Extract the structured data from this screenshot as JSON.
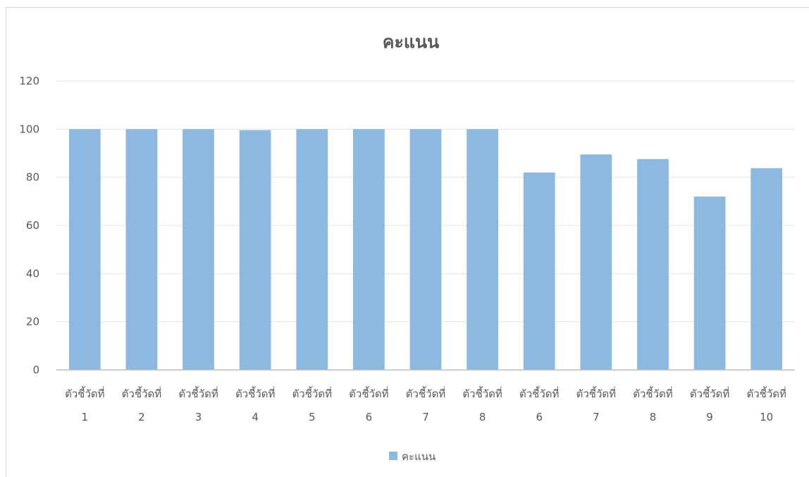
{
  "chart_data": {
    "type": "bar",
    "title": "คะแนน",
    "xlabel": "",
    "ylabel": "",
    "ylim": [
      0,
      120
    ],
    "yticks": [
      0,
      20,
      40,
      60,
      80,
      100,
      120
    ],
    "grid": true,
    "legend_position": "bottom",
    "categories": [
      [
        "ตัวชี้วัดที่",
        "1"
      ],
      [
        "ตัวชี้วัดที่",
        "2"
      ],
      [
        "ตัวชี้วัดที่",
        "3"
      ],
      [
        "ตัวชี้วัดที่",
        "4"
      ],
      [
        "ตัวชี้วัดที่",
        "5"
      ],
      [
        "ตัวชี้วัดที่",
        "6"
      ],
      [
        "ตัวชี้วัดที่",
        "7"
      ],
      [
        "ตัวชี้วัดที่",
        "8"
      ],
      [
        "ตัวชี้วัดที่",
        "6"
      ],
      [
        "ตัวชี้วัดที่",
        "7"
      ],
      [
        "ตัวชี้วัดที่",
        "8"
      ],
      [
        "ตัวชี้วัดที่",
        "9"
      ],
      [
        "ตัวชี้วัดที่",
        "10"
      ]
    ],
    "series": [
      {
        "name": "คะแนน",
        "color": "#8db8e0",
        "values": [
          100,
          100,
          100,
          99.6,
          100,
          100,
          100,
          100,
          82,
          89.5,
          87.6,
          72,
          83.8
        ]
      }
    ]
  }
}
